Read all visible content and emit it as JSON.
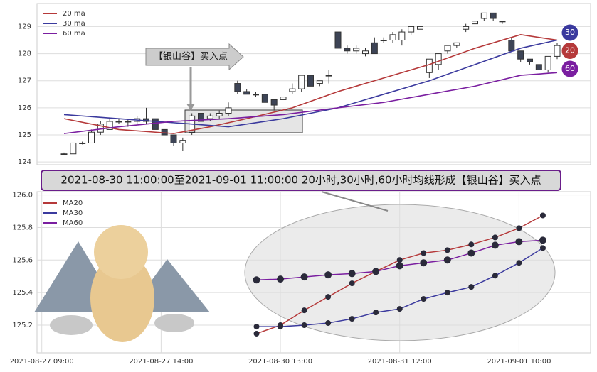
{
  "chart_data": [
    {
      "type": "candlestick",
      "annotation": "【银山谷】买入点",
      "end_labels": [
        "30",
        "20",
        "60"
      ],
      "open": [
        124.3,
        124.3,
        124.7,
        124.7,
        125.1,
        125.2,
        125.5,
        125.5,
        125.5,
        125.6,
        125.6,
        125.2,
        125.0,
        124.7,
        125.1,
        125.8,
        125.6,
        125.7,
        125.8,
        126.9,
        126.6,
        126.5,
        126.5,
        126.3,
        126.3,
        126.6,
        126.7,
        127.2,
        126.9,
        127.2,
        128.8,
        128.2,
        128.1,
        128.0,
        128.4,
        128.5,
        128.5,
        128.5,
        128.8,
        128.9,
        127.3,
        127.6,
        128.1,
        128.3,
        128.9,
        129.1,
        129.3,
        129.5,
        129.2,
        128.5,
        128.1,
        127.8,
        127.6,
        127.4,
        127.9
      ],
      "high": [
        124.35,
        124.7,
        124.75,
        125.2,
        125.5,
        125.6,
        125.6,
        125.6,
        125.7,
        126.0,
        125.6,
        125.2,
        125.0,
        124.9,
        125.8,
        125.9,
        125.8,
        125.9,
        126.2,
        127.0,
        126.7,
        126.6,
        126.5,
        126.3,
        126.4,
        126.9,
        127.2,
        127.2,
        127.0,
        127.4,
        128.8,
        128.3,
        128.3,
        128.2,
        128.6,
        128.6,
        128.8,
        128.9,
        129.0,
        129.0,
        127.8,
        128.0,
        128.3,
        128.4,
        129.1,
        129.2,
        129.5,
        129.5,
        129.2,
        128.6,
        128.1,
        127.8,
        127.6,
        127.9,
        128.4
      ],
      "low": [
        124.25,
        124.3,
        124.65,
        124.7,
        125.0,
        125.2,
        125.4,
        125.3,
        125.4,
        125.4,
        125.2,
        125.0,
        124.6,
        124.4,
        125.0,
        125.5,
        125.5,
        125.6,
        125.7,
        126.5,
        126.5,
        126.4,
        126.2,
        125.9,
        126.3,
        126.5,
        126.6,
        126.8,
        126.8,
        126.9,
        128.2,
        128.0,
        128.0,
        127.9,
        128.0,
        128.4,
        128.4,
        128.3,
        128.7,
        128.9,
        127.1,
        127.4,
        128.0,
        128.2,
        128.8,
        129.0,
        129.2,
        129.2,
        129.1,
        128.1,
        127.7,
        127.6,
        127.4,
        127.3,
        127.8
      ],
      "close": [
        124.3,
        124.7,
        124.7,
        125.1,
        125.4,
        125.5,
        125.5,
        125.5,
        125.6,
        125.5,
        125.2,
        125.0,
        124.7,
        124.8,
        125.7,
        125.5,
        125.7,
        125.8,
        126.0,
        126.6,
        126.5,
        126.5,
        126.2,
        126.1,
        126.4,
        126.7,
        127.2,
        126.8,
        127.0,
        127.2,
        128.2,
        128.1,
        128.2,
        128.1,
        128.0,
        128.5,
        128.7,
        128.8,
        129.0,
        129.0,
        127.8,
        128.0,
        128.3,
        128.4,
        129.0,
        129.2,
        129.5,
        129.3,
        129.2,
        128.1,
        127.8,
        127.7,
        127.4,
        127.9,
        128.3
      ],
      "series": [
        {
          "name": "20 ma",
          "color": "#b5393a",
          "x": [
            0,
            6,
            12,
            16,
            20,
            25,
            30,
            35,
            40,
            45,
            50,
            54
          ],
          "values": [
            125.6,
            125.2,
            125.05,
            125.3,
            125.6,
            126.0,
            126.6,
            127.1,
            127.6,
            128.2,
            128.7,
            128.5
          ]
        },
        {
          "name": "30 ma",
          "color": "#3b3a9e",
          "x": [
            0,
            6,
            12,
            18,
            24,
            30,
            35,
            40,
            45,
            50,
            54
          ],
          "values": [
            125.75,
            125.6,
            125.45,
            125.3,
            125.6,
            126.0,
            126.5,
            127.0,
            127.6,
            128.2,
            128.5
          ]
        },
        {
          "name": "60 ma",
          "color": "#7a1ea0",
          "x": [
            0,
            6,
            12,
            18,
            24,
            30,
            35,
            40,
            45,
            50,
            54
          ],
          "values": [
            125.05,
            125.3,
            125.5,
            125.6,
            125.75,
            126.0,
            126.2,
            126.5,
            126.8,
            127.2,
            127.3
          ]
        }
      ],
      "ylim": [
        123.9,
        129.85
      ],
      "yticks": [
        124,
        125,
        126,
        127,
        128,
        129
      ],
      "grid": true
    },
    {
      "type": "line",
      "title": "2021-08-30 11:00:00至2021-09-01 11:00:00 20小时,30小时,60小时均线形成【银山谷】买入点",
      "xlim": [
        -0.2,
        23
      ],
      "xticks": [
        {
          "value": 0,
          "label": "2021-08-27 09:00"
        },
        {
          "value": 5,
          "label": "2021-08-27 14:00"
        },
        {
          "value": 10,
          "label": "2021-08-30 13:00"
        },
        {
          "value": 15,
          "label": "2021-08-31 12:00"
        },
        {
          "value": 20,
          "label": "2021-09-01 10:00"
        }
      ],
      "x": [
        9,
        10,
        11,
        12,
        13,
        14,
        15,
        16,
        17,
        18,
        19,
        20,
        21
      ],
      "series": [
        {
          "name": "MA20",
          "color": "#b5393a",
          "values": [
            125.148,
            125.2,
            125.291,
            125.374,
            125.457,
            125.53,
            125.6,
            125.643,
            125.661,
            125.696,
            125.739,
            125.796,
            125.874
          ]
        },
        {
          "name": "MA30",
          "color": "#3b3a9e",
          "values": [
            125.191,
            125.191,
            125.2,
            125.213,
            125.239,
            125.278,
            125.3,
            125.361,
            125.4,
            125.435,
            125.504,
            125.583,
            125.674
          ]
        },
        {
          "name": "MA60",
          "color": "#7a1ea0",
          "values": [
            125.478,
            125.483,
            125.496,
            125.509,
            125.517,
            125.53,
            125.565,
            125.583,
            125.6,
            125.643,
            125.691,
            125.713,
            125.722
          ]
        }
      ],
      "ylim": [
        125.03,
        126.02
      ],
      "yticks": [
        125.2,
        125.4,
        125.6,
        125.8,
        {
          "value": 126,
          "label": "126.0"
        }
      ],
      "grid": true
    }
  ]
}
